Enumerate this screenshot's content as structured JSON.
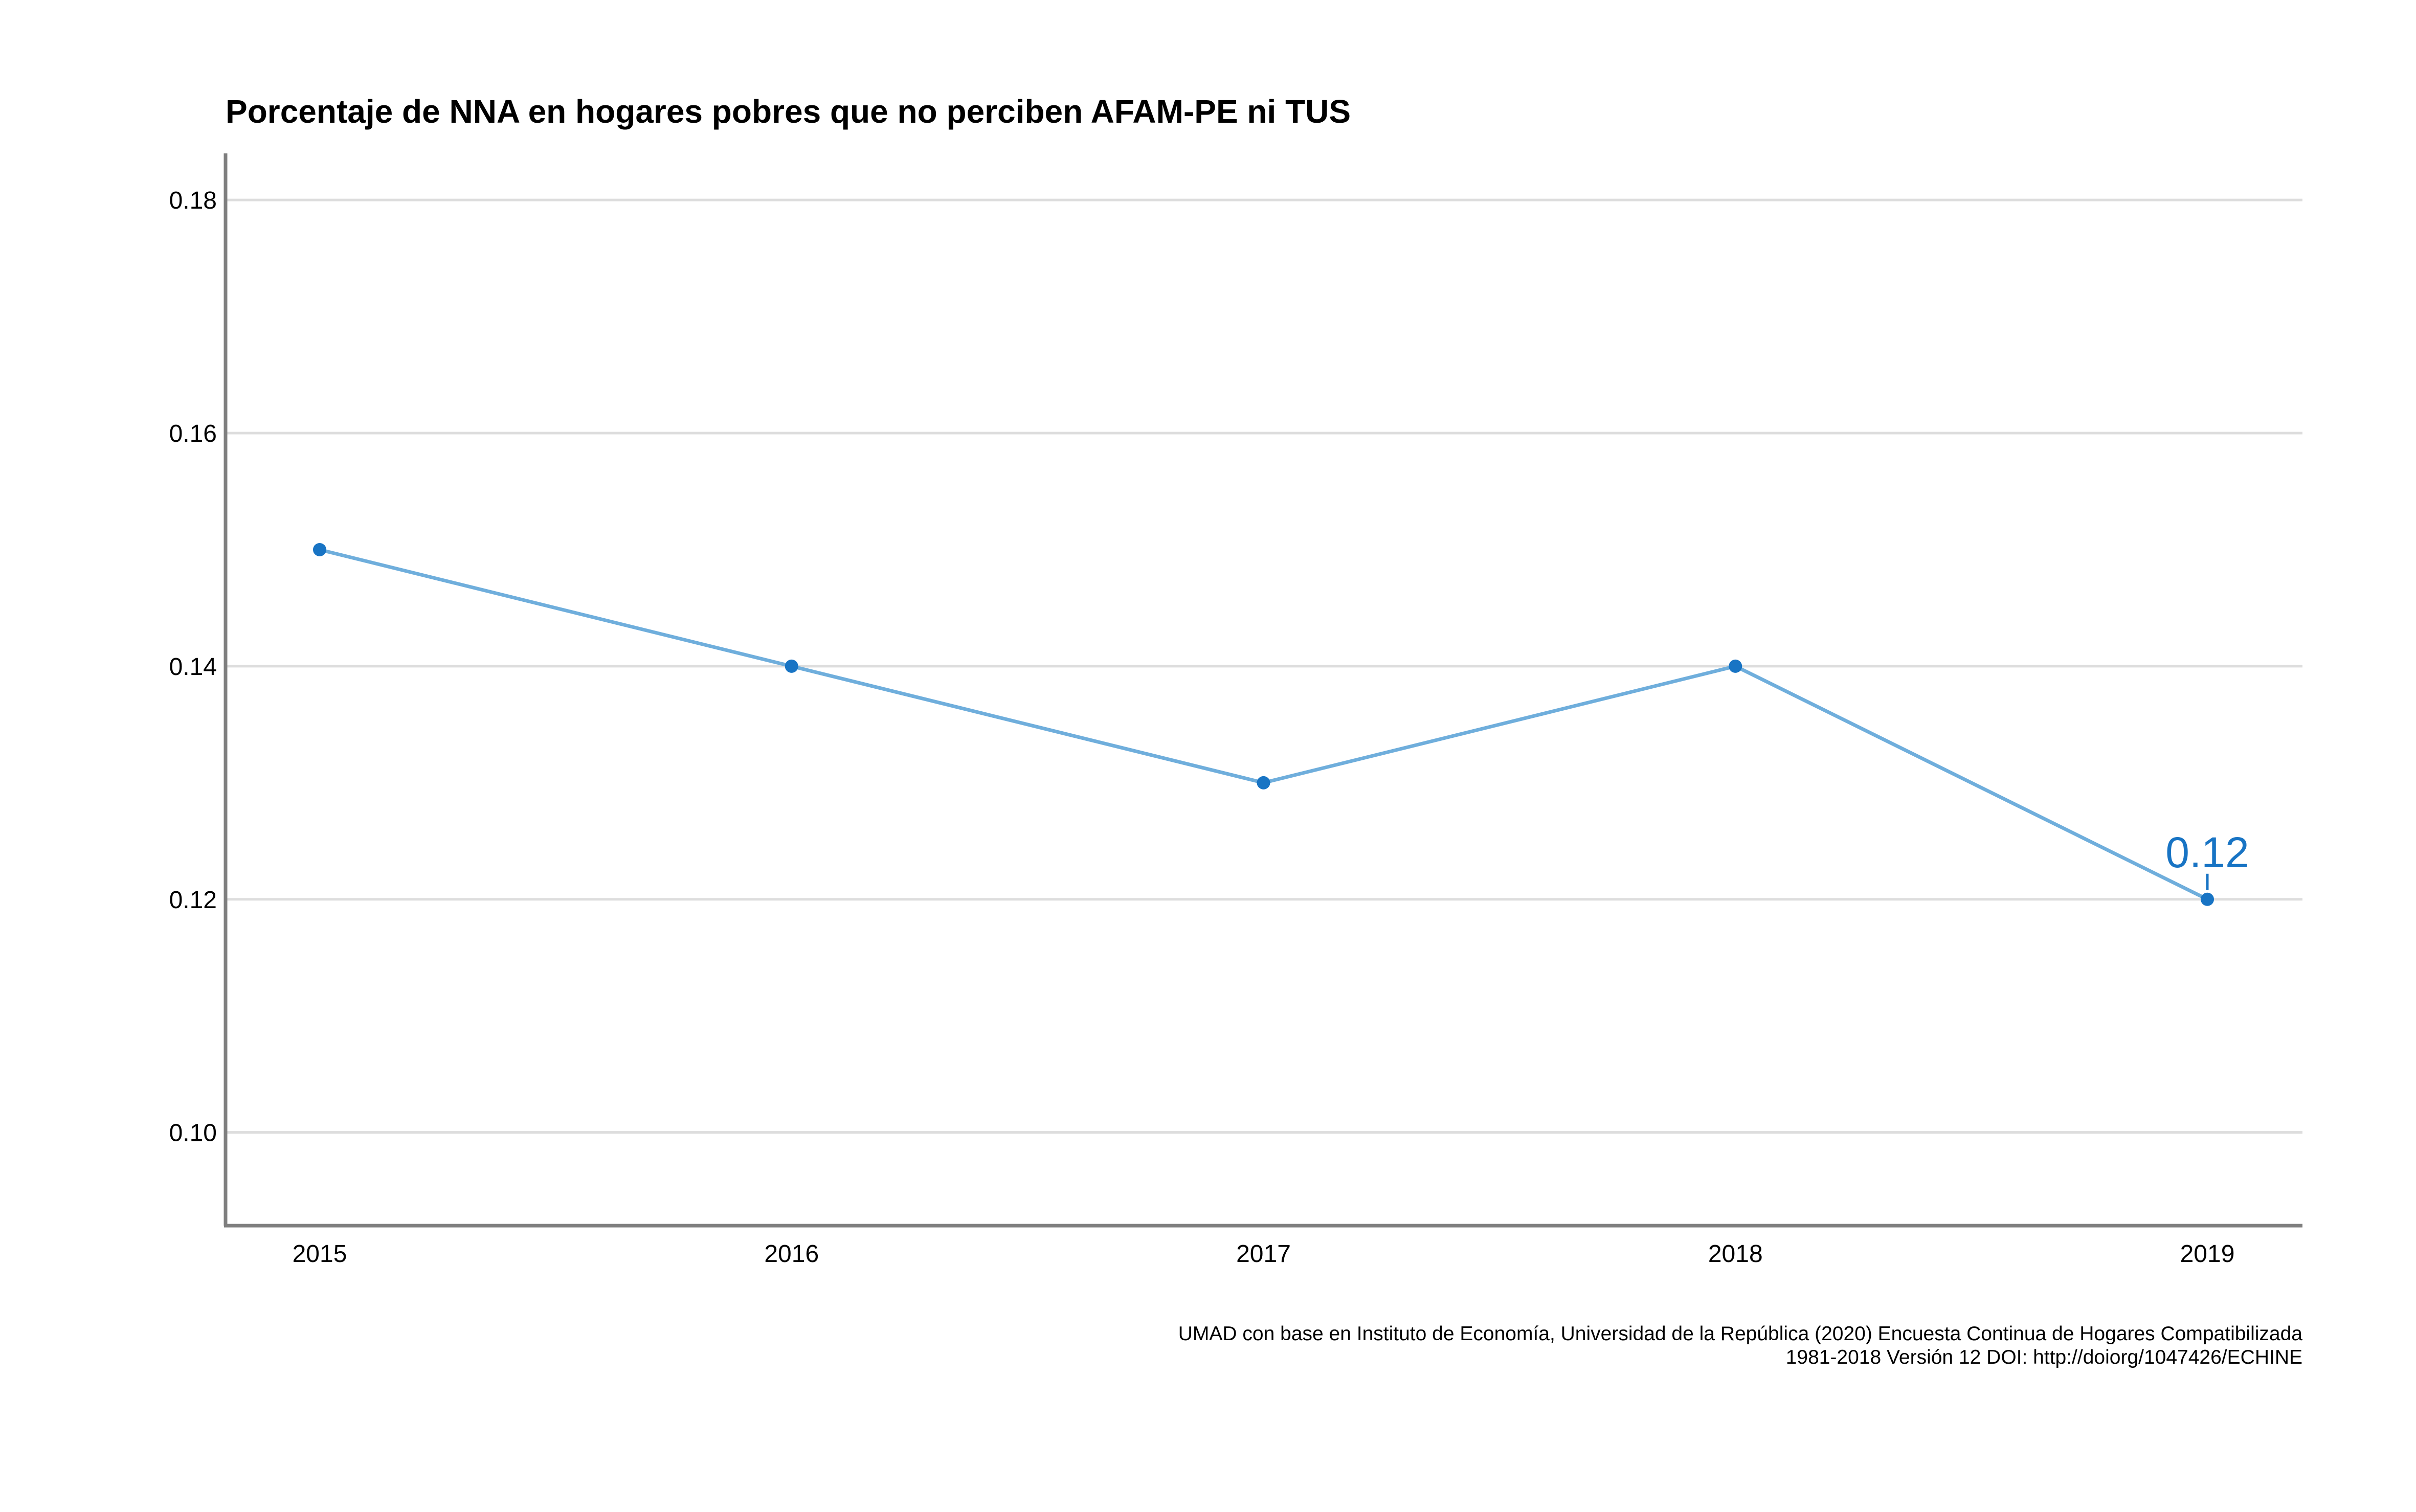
{
  "chart_data": {
    "type": "line",
    "title": "Porcentaje de NNA en hogares pobres que no perciben AFAM-PE ni TUS",
    "xlabel": "",
    "ylabel": "",
    "x": [
      "2015",
      "2016",
      "2017",
      "2018",
      "2019"
    ],
    "series": [
      {
        "values": [
          0.15,
          0.14,
          0.13,
          0.14,
          0.12
        ]
      }
    ],
    "ylim": [
      0.092,
      0.184
    ],
    "yticks": [
      0.1,
      0.12,
      0.14,
      0.16,
      0.18
    ],
    "ytick_labels": [
      "0.10",
      "0.12",
      "0.14",
      "0.16",
      "0.18"
    ],
    "grid": "horizontal",
    "legend": "none",
    "annotations": [
      {
        "x": "2019",
        "y": 0.12,
        "text": "0.12"
      }
    ],
    "caption": [
      "UMAD con base en Instituto de Economía, Universidad de la República (2020) Encuesta Continua de Hogares Compatibilizada",
      "1981-2018 Versión 12 DOI: http://doiorg/1047426/ECHINE"
    ],
    "colors": {
      "line": "#6FAEDC",
      "point": "#1874C4",
      "annotation": "#1874C4",
      "grid": "#DDDDDD",
      "axis": "#7F7F7F"
    }
  }
}
